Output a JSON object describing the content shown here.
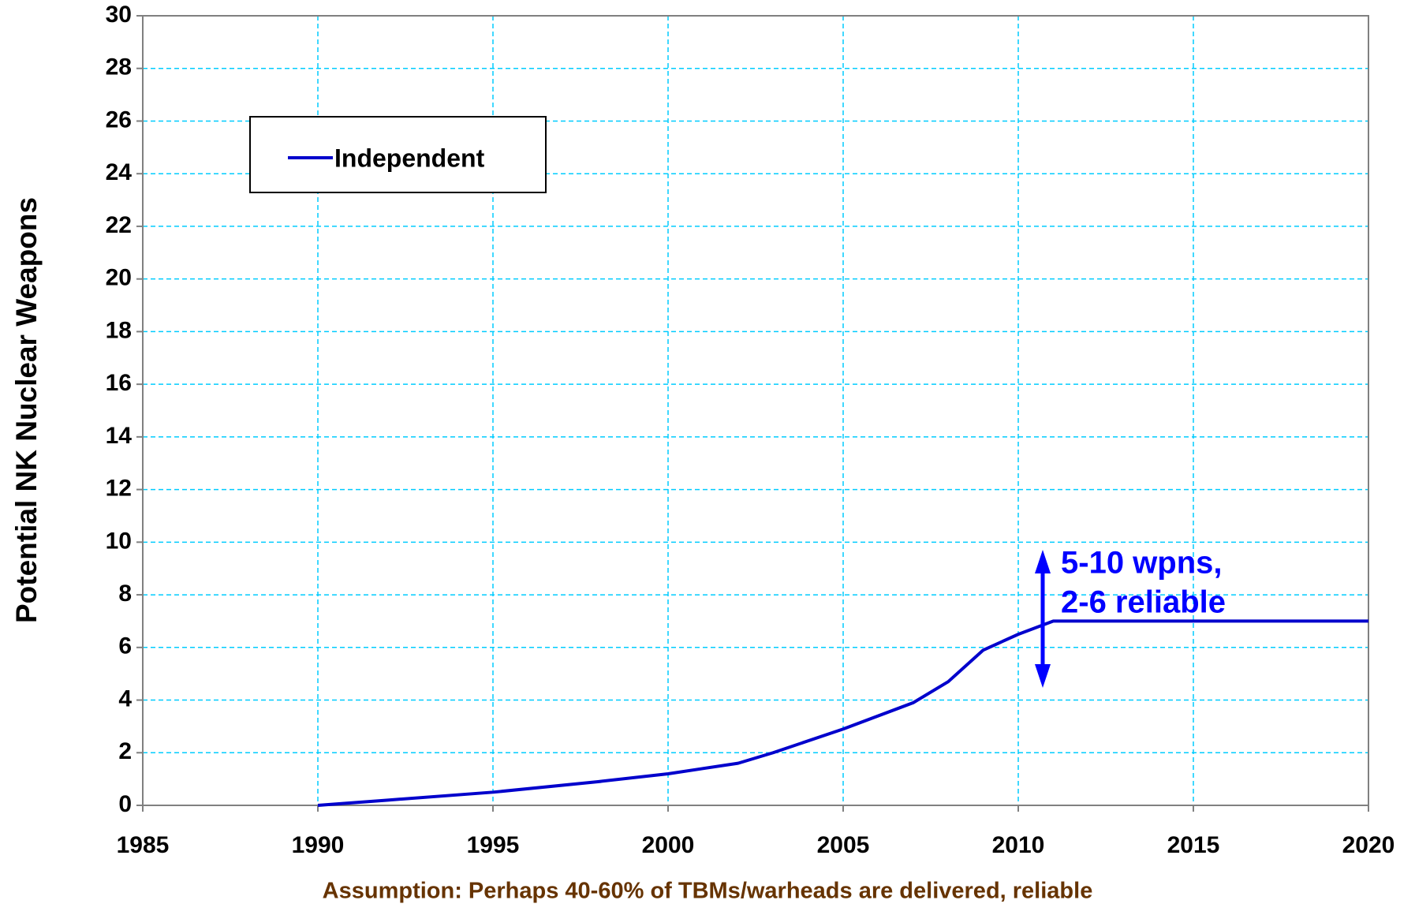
{
  "chart_data": {
    "type": "line",
    "y_label": "Potential NK Nuclear Weapons",
    "footer": "Assumption: Perhaps 40-60% of TBMs/warheads are delivered, reliable",
    "annotation": [
      "5-10 wpns,",
      "2-6 reliable"
    ],
    "annotation_color": "#0000ff",
    "x": [
      1990,
      1992,
      1995,
      1998,
      2000,
      2002,
      2003,
      2005,
      2007,
      2008,
      2009,
      2010,
      2011,
      2015,
      2020
    ],
    "series": [
      {
        "name": "Independent",
        "color": "#0000cc",
        "values": [
          0,
          0.2,
          0.5,
          0.9,
          1.2,
          1.6,
          2.0,
          2.9,
          3.9,
          4.7,
          5.9,
          6.5,
          7,
          7,
          7
        ]
      }
    ],
    "xlim": [
      1985,
      2020
    ],
    "xticks": [
      1985,
      1990,
      1995,
      2000,
      2005,
      2010,
      2015,
      2020
    ],
    "ylim": [
      0,
      30
    ],
    "yticks": [
      0,
      2,
      4,
      6,
      8,
      10,
      12,
      14,
      16,
      18,
      20,
      22,
      24,
      26,
      28,
      30
    ],
    "grid": true,
    "legend": "upper left"
  }
}
